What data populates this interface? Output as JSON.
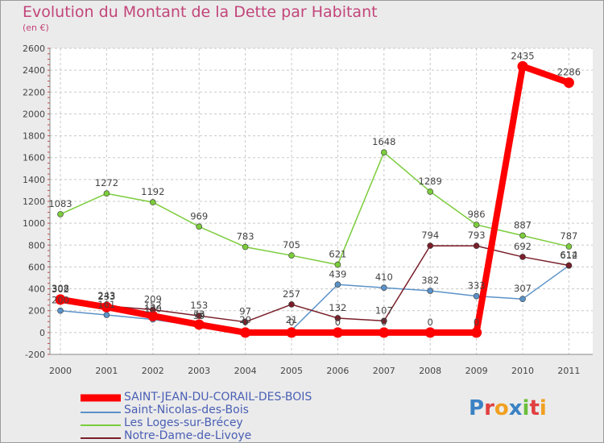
{
  "chart_data": {
    "type": "line",
    "title": "Evolution du Montant de la Dette par Habitant",
    "subtitle": "(en €)",
    "x": [
      "2000",
      "2001",
      "2002",
      "2003",
      "2004",
      "2005",
      "2006",
      "2007",
      "2008",
      "2009",
      "2010",
      "2011"
    ],
    "ylim": [
      -200,
      2600
    ],
    "yticks": [
      "-200",
      "0",
      "200",
      "400",
      "600",
      "800",
      "1000",
      "1200",
      "1400",
      "1600",
      "1800",
      "2000",
      "2200",
      "2400",
      "2600"
    ],
    "grid": true,
    "legend_position": "bottom-left",
    "series": [
      {
        "name": "SAINT-JEAN-DU-CORAIL-DES-BOIS",
        "color": "#ff0000",
        "values": [
          302,
          233,
          152,
          73,
          0,
          0,
          0,
          0,
          0,
          0,
          2435,
          2286
        ],
        "labels": [
          "302",
          "233",
          "152",
          "73",
          "0",
          "0",
          "0",
          "0",
          "0",
          "0",
          "2435",
          "2286"
        ]
      },
      {
        "name": "Saint-Nicolas-des-Bois",
        "color": "#5b92c8",
        "values": [
          200,
          161,
          120,
          59,
          20,
          21,
          439,
          410,
          382,
          333,
          307,
          612
        ],
        "labels": [
          "200",
          "161",
          "120",
          "59",
          "20",
          "21",
          "439",
          "410",
          "382",
          "333",
          "307",
          "612"
        ]
      },
      {
        "name": "Les Loges-sur-Brécey",
        "color": "#7ccc3c",
        "values": [
          1083,
          1272,
          1192,
          969,
          783,
          705,
          621,
          1648,
          1289,
          986,
          887,
          787
        ],
        "labels": [
          "1083",
          "1272",
          "1192",
          "969",
          "783",
          "705",
          "621",
          "1648",
          "1289",
          "986",
          "887",
          "787"
        ]
      },
      {
        "name": "Notre-Dame-de-Livoye",
        "color": "#7a1f2a",
        "values": [
          308,
          243,
          209,
          153,
          97,
          257,
          132,
          107,
          794,
          793,
          692,
          614
        ],
        "labels": [
          "308",
          "243",
          "209",
          "153",
          "97",
          "257",
          "132",
          "107",
          "794",
          "793",
          "692",
          "614"
        ]
      }
    ]
  },
  "logo": {
    "text": "Proxiti"
  }
}
